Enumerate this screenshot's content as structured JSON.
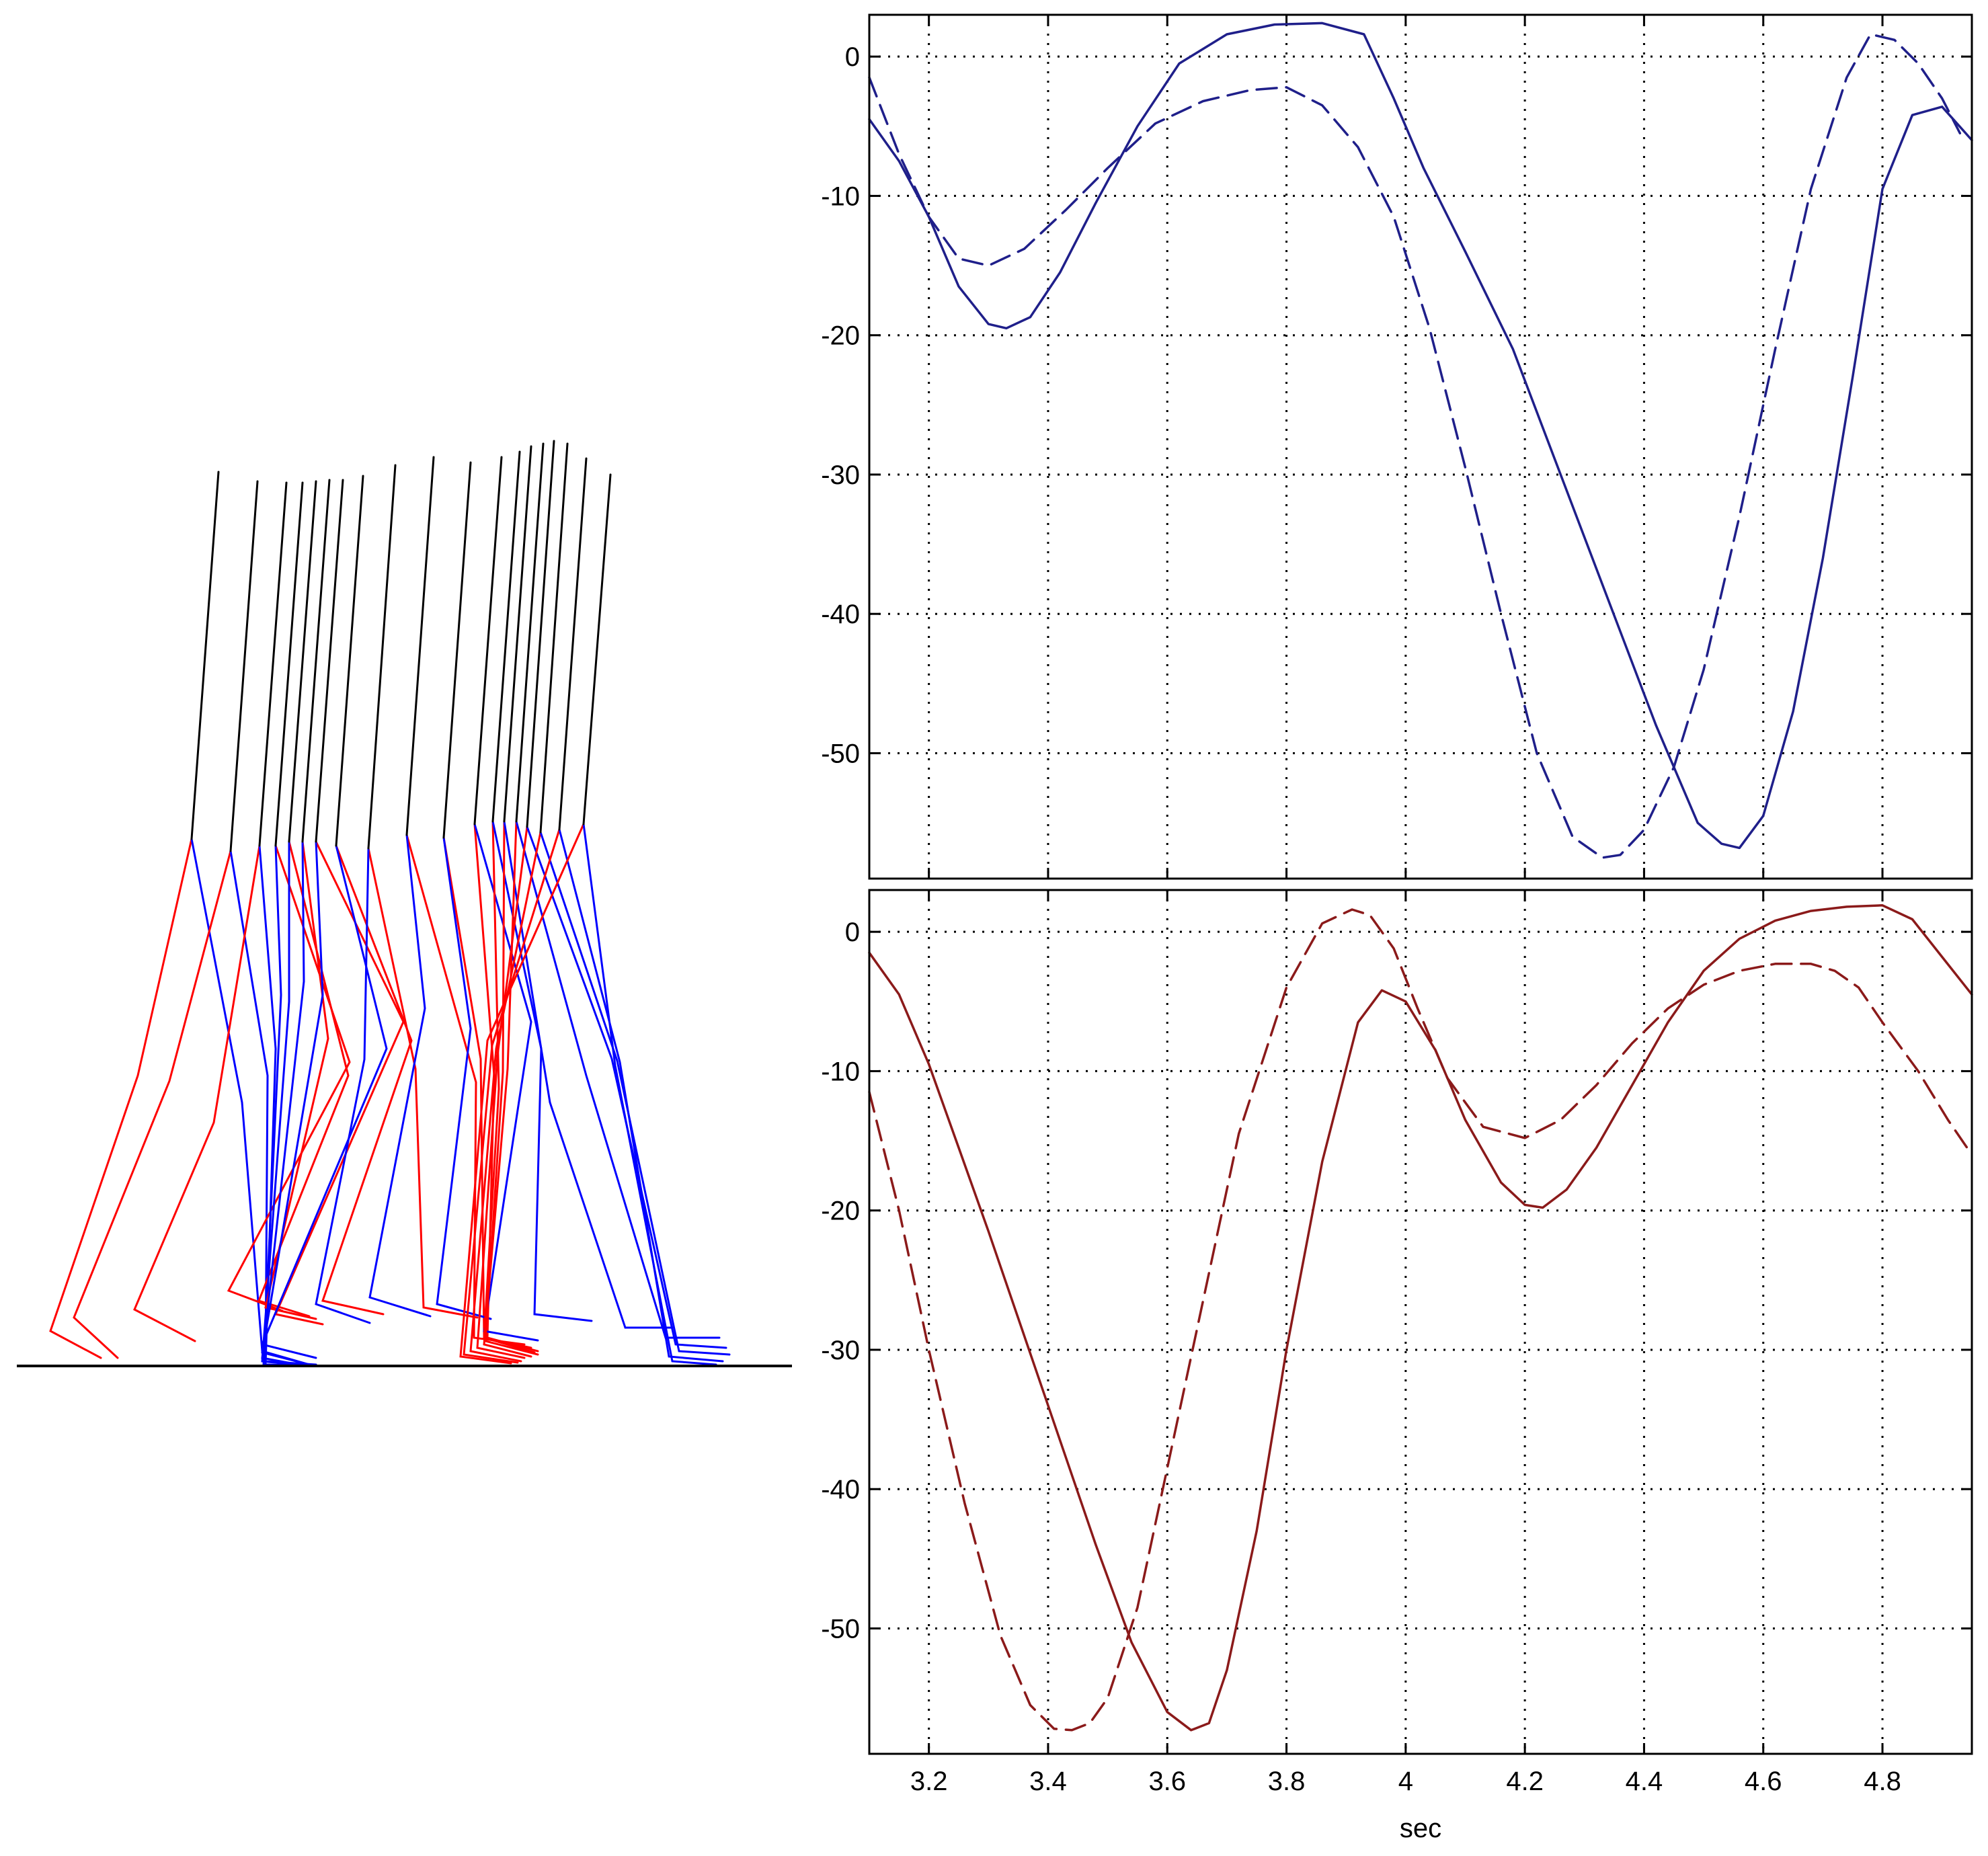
{
  "figure": {
    "colors": {
      "trunk": "#000000",
      "leg_red": "#ff0000",
      "leg_blue": "#0000ff",
      "ground": "#000000"
    }
  },
  "chart_data": [
    {
      "type": "line",
      "title": "",
      "xlabel": "",
      "ylabel": "",
      "xlim": [
        3.1,
        4.95
      ],
      "ylim": [
        -59,
        3
      ],
      "xticks": [
        3.2,
        3.4,
        3.6,
        3.8,
        4.0,
        4.2,
        4.4,
        4.6,
        4.8
      ],
      "xtick_labels": [
        "",
        "",
        "",
        "",
        "",
        "",
        "",
        "",
        ""
      ],
      "yticks": [
        0,
        -10,
        -20,
        -30,
        -40,
        -50
      ],
      "ytick_labels": [
        "0",
        "-10",
        "-20",
        "-30",
        "-40",
        "-50"
      ],
      "grid": true,
      "series": [
        {
          "style": "solid",
          "color": "#1f1f8a",
          "x": [
            3.1,
            3.15,
            3.2,
            3.25,
            3.3,
            3.33,
            3.37,
            3.42,
            3.48,
            3.55,
            3.62,
            3.7,
            3.78,
            3.86,
            3.93,
            3.98,
            4.03,
            4.1,
            4.18,
            4.26,
            4.34,
            4.42,
            4.49,
            4.53,
            4.56,
            4.6,
            4.65,
            4.7,
            4.75,
            4.8,
            4.85,
            4.9,
            4.95
          ],
          "y": [
            -4.5,
            -7.5,
            -11.5,
            -16.5,
            -19.2,
            -19.5,
            -18.7,
            -15.5,
            -10.5,
            -5.0,
            -0.5,
            1.6,
            2.3,
            2.4,
            1.6,
            -3.0,
            -8.0,
            -14.0,
            -21.0,
            -30.0,
            -39.0,
            -48.0,
            -55.0,
            -56.5,
            -56.8,
            -54.5,
            -47.0,
            -36.0,
            -23.0,
            -9.5,
            -4.2,
            -3.6,
            -6.0
          ]
        },
        {
          "style": "dashed",
          "color": "#1f1f8a",
          "x": [
            3.1,
            3.15,
            3.2,
            3.25,
            3.3,
            3.36,
            3.43,
            3.5,
            3.58,
            3.66,
            3.74,
            3.8,
            3.86,
            3.92,
            3.98,
            4.04,
            4.1,
            4.16,
            4.22,
            4.28,
            4.33,
            4.36,
            4.4,
            4.45,
            4.5,
            4.56,
            4.62,
            4.68,
            4.74,
            4.78,
            4.82,
            4.86,
            4.9,
            4.93
          ],
          "y": [
            -1.5,
            -7.0,
            -11.5,
            -14.5,
            -15.0,
            -13.8,
            -11.0,
            -8.0,
            -4.8,
            -3.2,
            -2.4,
            -2.2,
            -3.5,
            -6.5,
            -11.5,
            -19.5,
            -29.5,
            -40.0,
            -50.0,
            -56.0,
            -57.5,
            -57.3,
            -55.5,
            -51.0,
            -44.0,
            -33.0,
            -21.0,
            -9.5,
            -1.5,
            1.6,
            1.2,
            -0.5,
            -3.0,
            -5.5
          ]
        }
      ]
    },
    {
      "type": "line",
      "title": "",
      "xlabel": "sec",
      "ylabel": "",
      "xlim": [
        3.1,
        4.95
      ],
      "ylim": [
        -59,
        3
      ],
      "xticks": [
        3.2,
        3.4,
        3.6,
        3.8,
        4.0,
        4.2,
        4.4,
        4.6,
        4.8
      ],
      "xtick_labels": [
        "3.2",
        "3.4",
        "3.6",
        "3.8",
        "4",
        "4.2",
        "4.4",
        "4.6",
        "4.8"
      ],
      "yticks": [
        0,
        -10,
        -20,
        -30,
        -40,
        -50
      ],
      "ytick_labels": [
        "0",
        "-10",
        "-20",
        "-30",
        "-40",
        "-50"
      ],
      "grid": true,
      "series": [
        {
          "style": "solid",
          "color": "#8b1a1a",
          "x": [
            3.1,
            3.15,
            3.2,
            3.25,
            3.3,
            3.36,
            3.42,
            3.48,
            3.54,
            3.6,
            3.64,
            3.67,
            3.7,
            3.75,
            3.8,
            3.86,
            3.92,
            3.96,
            4.0,
            4.05,
            4.1,
            4.16,
            4.2,
            4.23,
            4.27,
            4.32,
            4.38,
            4.44,
            4.5,
            4.56,
            4.62,
            4.68,
            4.74,
            4.8,
            4.85,
            4.9,
            4.95
          ],
          "y": [
            -1.5,
            -4.5,
            -9.5,
            -15.5,
            -21.5,
            -29.0,
            -36.5,
            -44.0,
            -51.0,
            -56.0,
            -57.3,
            -56.8,
            -53.0,
            -43.0,
            -30.0,
            -16.5,
            -6.5,
            -4.2,
            -5.0,
            -8.5,
            -13.5,
            -18.0,
            -19.6,
            -19.8,
            -18.5,
            -15.5,
            -11.0,
            -6.5,
            -2.8,
            -0.5,
            0.8,
            1.5,
            1.8,
            1.9,
            0.9,
            -1.8,
            -4.5
          ]
        },
        {
          "style": "dashed",
          "color": "#8b1a1a",
          "x": [
            3.1,
            3.15,
            3.2,
            3.26,
            3.32,
            3.37,
            3.41,
            3.44,
            3.47,
            3.5,
            3.55,
            3.6,
            3.66,
            3.72,
            3.8,
            3.86,
            3.91,
            3.94,
            3.98,
            4.02,
            4.07,
            4.13,
            4.2,
            4.26,
            4.32,
            4.38,
            4.44,
            4.5,
            4.56,
            4.62,
            4.68,
            4.72,
            4.76,
            4.8,
            4.86,
            4.91,
            4.95
          ],
          "y": [
            -11.5,
            -20.0,
            -30.0,
            -41.0,
            -50.5,
            -55.5,
            -57.2,
            -57.3,
            -56.8,
            -55.0,
            -48.5,
            -38.5,
            -26.5,
            -14.5,
            -4.0,
            0.6,
            1.6,
            1.2,
            -1.2,
            -5.5,
            -10.5,
            -14.0,
            -14.8,
            -13.5,
            -11.0,
            -8.0,
            -5.5,
            -3.8,
            -2.8,
            -2.3,
            -2.3,
            -2.8,
            -4.0,
            -6.5,
            -10.0,
            -13.5,
            -16.0
          ]
        }
      ]
    }
  ]
}
